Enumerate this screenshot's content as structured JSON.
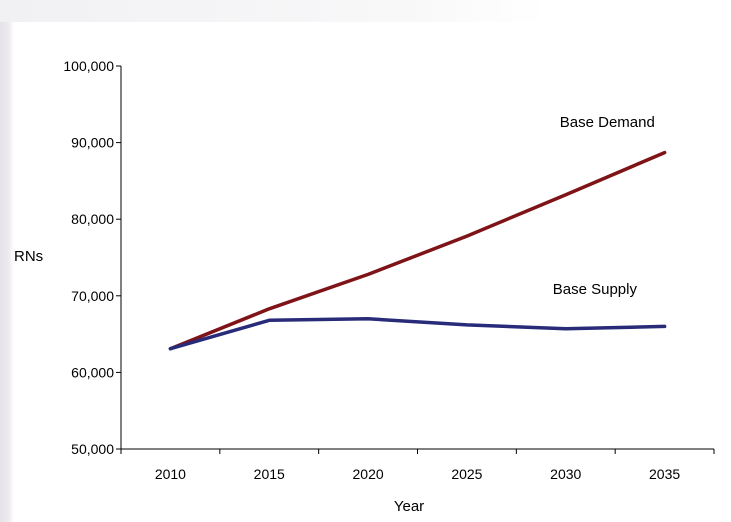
{
  "chart_data": {
    "type": "line",
    "xlabel": "Year",
    "ylabel": "RNs",
    "x": [
      2010,
      2015,
      2020,
      2025,
      2030,
      2035
    ],
    "ylim": [
      50000,
      100000
    ],
    "yticks": [
      50000,
      60000,
      70000,
      80000,
      90000,
      100000
    ],
    "ytick_labels": [
      "50,000",
      "60,000",
      "70,000",
      "80,000",
      "90,000",
      "100,000"
    ],
    "grid": false,
    "series": [
      {
        "name": "Base Demand",
        "color": "#7f1418",
        "values": [
          63100,
          68300,
          72800,
          77800,
          83200,
          88700
        ]
      },
      {
        "name": "Base Supply",
        "color": "#282b78",
        "values": [
          63100,
          66800,
          67000,
          66200,
          65700,
          66000
        ]
      }
    ]
  }
}
